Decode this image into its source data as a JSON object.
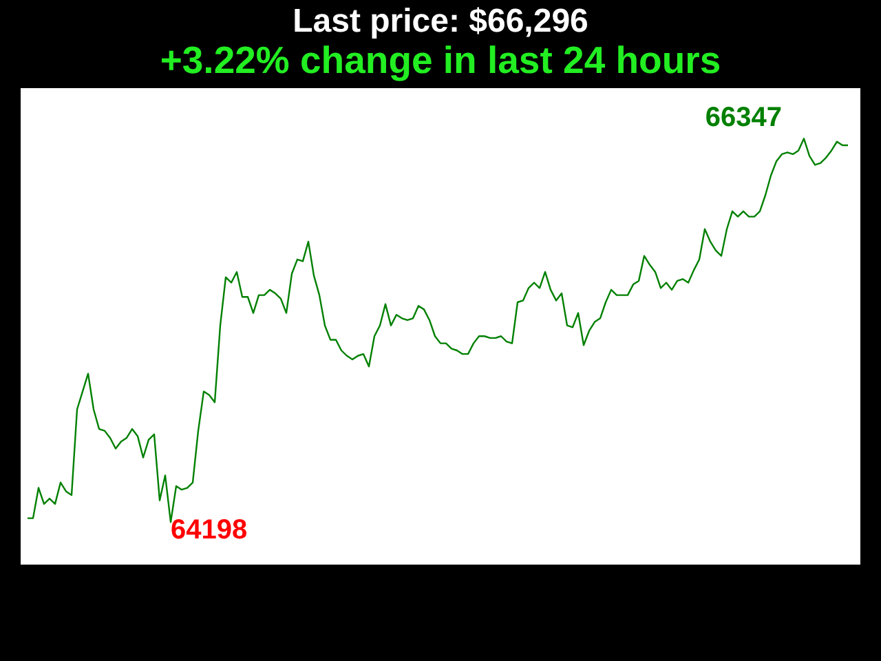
{
  "chart_data": {
    "type": "line",
    "title": "Last price: $66,296",
    "subtitle": "+3.22% change in last 24 hours",
    "categories": [
      null,
      null,
      null,
      null,
      null,
      null,
      null,
      null,
      null,
      null,
      null,
      null,
      null,
      null,
      null,
      null,
      null,
      null,
      null,
      null,
      null,
      null,
      null,
      null,
      null,
      null,
      null,
      null,
      null,
      null,
      null,
      null,
      null,
      null,
      null,
      null,
      null,
      null,
      null,
      null,
      null,
      null,
      null,
      null,
      null,
      null,
      null,
      null,
      null,
      null,
      null,
      null,
      null,
      null,
      null,
      null,
      null,
      null,
      null,
      null,
      null,
      null,
      null,
      null,
      null,
      null,
      null,
      null,
      null,
      null,
      null,
      null,
      null,
      null,
      null,
      null,
      null,
      null,
      null,
      null,
      null,
      null,
      null,
      null,
      null,
      null,
      null,
      null,
      null,
      null,
      null,
      null,
      null,
      null,
      null,
      null,
      null,
      null,
      null,
      null,
      null,
      null,
      null,
      null,
      null,
      null,
      null,
      null,
      null,
      null,
      null,
      null,
      null,
      null,
      null,
      null,
      null,
      null,
      null,
      null,
      null,
      null,
      null,
      null,
      null,
      null,
      null,
      null,
      null,
      null,
      null,
      null,
      null,
      null,
      null,
      null,
      null,
      null,
      null,
      null,
      null,
      null,
      null,
      null,
      null,
      null,
      null,
      null,
      null,
      null
    ],
    "values": [
      64220,
      64220,
      64390,
      64300,
      64330,
      64300,
      64420,
      64370,
      64350,
      64830,
      64930,
      65030,
      64830,
      64720,
      64710,
      64670,
      64610,
      64650,
      64670,
      64720,
      64680,
      64560,
      64660,
      64690,
      64320,
      64460,
      64198,
      64400,
      64380,
      64390,
      64420,
      64710,
      64930,
      64910,
      64870,
      65300,
      65570,
      65540,
      65600,
      65460,
      65460,
      65370,
      65470,
      65470,
      65500,
      65480,
      65450,
      65370,
      65590,
      65670,
      65660,
      65770,
      65580,
      65470,
      65300,
      65220,
      65220,
      65160,
      65130,
      65110,
      65130,
      65140,
      65070,
      65240,
      65300,
      65420,
      65300,
      65360,
      65340,
      65330,
      65340,
      65410,
      65390,
      65330,
      65240,
      65200,
      65200,
      65170,
      65160,
      65140,
      65140,
      65200,
      65240,
      65240,
      65230,
      65230,
      65240,
      65210,
      65200,
      65430,
      65440,
      65510,
      65540,
      65510,
      65600,
      65500,
      65440,
      65480,
      65300,
      65290,
      65370,
      65190,
      65270,
      65320,
      65340,
      65430,
      65500,
      65470,
      65470,
      65470,
      65530,
      65550,
      65690,
      65640,
      65600,
      65510,
      65540,
      65500,
      65550,
      65560,
      65540,
      65610,
      65670,
      65840,
      65770,
      65720,
      65690,
      65840,
      65940,
      65910,
      65940,
      65910,
      65910,
      65940,
      66030,
      66140,
      66220,
      66260,
      66270,
      66260,
      66280,
      66347,
      66250,
      66200,
      66210,
      66240,
      66280,
      66330,
      66310,
      66310
    ],
    "value_labels": [
      null,
      null,
      null,
      null,
      null,
      null,
      null,
      null,
      null,
      null,
      null,
      null,
      null,
      null,
      null,
      null,
      null,
      null,
      null,
      null,
      null,
      null,
      null,
      null,
      null,
      null,
      "64198",
      null,
      null,
      null,
      null,
      null,
      null,
      null,
      null,
      null,
      null,
      null,
      null,
      null,
      null,
      null,
      null,
      null,
      null,
      null,
      null,
      null,
      null,
      null,
      null,
      null,
      null,
      null,
      null,
      null,
      null,
      null,
      null,
      null,
      null,
      null,
      null,
      null,
      null,
      null,
      null,
      null,
      null,
      null,
      null,
      null,
      null,
      null,
      null,
      null,
      null,
      null,
      null,
      null,
      null,
      null,
      null,
      null,
      null,
      null,
      null,
      null,
      null,
      null,
      null,
      null,
      null,
      null,
      null,
      null,
      null,
      null,
      null,
      null,
      null,
      null,
      null,
      null,
      null,
      null,
      null,
      null,
      null,
      null,
      null,
      null,
      null,
      null,
      null,
      null,
      null,
      null,
      null,
      null,
      null,
      null,
      null,
      null,
      null,
      null,
      null,
      null,
      null,
      null,
      null,
      null,
      null,
      null,
      null,
      null,
      null,
      null,
      null,
      null,
      null,
      "66347",
      null,
      null,
      null,
      null,
      null,
      null,
      null,
      null
    ],
    "color": "#008000",
    "ylim": [
      63960,
      66630
    ],
    "tick_labels": false,
    "line_style": "solid"
  }
}
